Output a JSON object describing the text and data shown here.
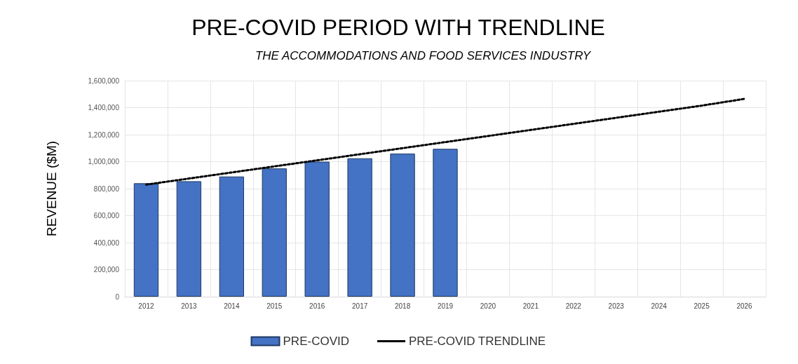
{
  "chart_data": {
    "type": "bar",
    "title": "PRE-COVID PERIOD WITH TRENDLINE",
    "subtitle": "THE ACCOMMODATIONS AND FOOD SERVICES INDUSTRY",
    "ylabel": "REVENUE ($M)",
    "categories": [
      "2012",
      "2013",
      "2014",
      "2015",
      "2016",
      "2017",
      "2018",
      "2019",
      "2020",
      "2021",
      "2022",
      "2023",
      "2024",
      "2025",
      "2026"
    ],
    "series": [
      {
        "name": "PRE-COVID",
        "color": "#4472c4",
        "values": [
          840000,
          855000,
          890000,
          950000,
          1000000,
          1025000,
          1060000,
          1095000,
          null,
          null,
          null,
          null,
          null,
          null,
          null
        ]
      },
      {
        "name": "PRE-COVID TRENDLINE",
        "type": "line",
        "color": "#000000",
        "line_style": "dotted",
        "marker": "none",
        "values": [
          830000,
          875000,
          920000,
          965000,
          1010000,
          1055000,
          1100000,
          1145000,
          1190000,
          1235000,
          1280000,
          1325000,
          1370000,
          1415000,
          1465000
        ]
      }
    ],
    "ylim": [
      0,
      1600000
    ],
    "yticks": [
      0,
      {
        "value": 200000,
        "label": "200,000"
      },
      {
        "value": 400000,
        "label": "400,000"
      },
      {
        "value": 600000,
        "label": "600,000"
      },
      {
        "value": 800000,
        "label": "800,000"
      },
      {
        "value": 1000000,
        "label": "1,000,000"
      },
      {
        "value": 1200000,
        "label": "1,200,000"
      },
      {
        "value": 1400000,
        "label": "1,400,000"
      },
      {
        "value": 1600000,
        "label": "1,600,000"
      }
    ],
    "grid": true,
    "legend": "bottom"
  }
}
